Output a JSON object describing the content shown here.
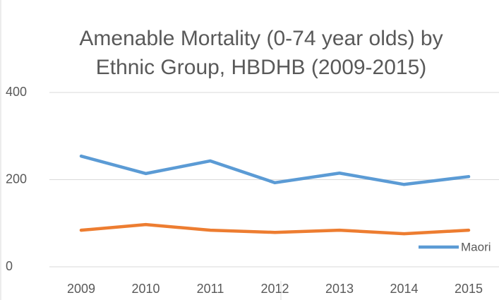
{
  "chart_data": {
    "type": "line",
    "title": "Amenable Mortality (0-74 year olds) by Ethnic Group, HBDHB (2009-2015)",
    "categories": [
      "2009",
      "2010",
      "2011",
      "2012",
      "2013",
      "2014",
      "2015"
    ],
    "series": [
      {
        "name": "Maori",
        "color": "#5b9bd5",
        "values": [
          254,
          214,
          243,
          193,
          215,
          189,
          207
        ]
      },
      {
        "color": "#ed7d31",
        "values": [
          84,
          97,
          84,
          79,
          84,
          76,
          84
        ]
      }
    ],
    "ylim": [
      0,
      400
    ],
    "yticks": [
      0,
      200,
      400
    ],
    "grid": true,
    "legend": "bottom-right"
  }
}
